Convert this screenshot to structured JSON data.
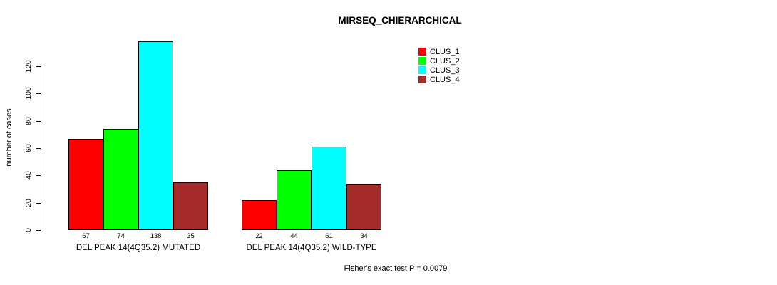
{
  "chart_data": {
    "type": "bar",
    "title": "MIRSEQ_CHIERARCHICAL",
    "xlabel": "",
    "ylabel": "number of cases",
    "ylim": [
      0,
      138
    ],
    "yticks": [
      0,
      20,
      40,
      60,
      80,
      100,
      120
    ],
    "grid": false,
    "legend_position": "top-right",
    "categories": [
      "DEL PEAK 14(4Q35.2) MUTATED",
      "DEL PEAK 14(4Q35.2) WILD-TYPE"
    ],
    "series": [
      {
        "name": "CLUS_1",
        "color": "#FF0000",
        "values": [
          67,
          22
        ]
      },
      {
        "name": "CLUS_2",
        "color": "#00FF00",
        "values": [
          74,
          44
        ]
      },
      {
        "name": "CLUS_3",
        "color": "#00FFFF",
        "values": [
          138,
          61
        ]
      },
      {
        "name": "CLUS_4",
        "color": "#A52A2A",
        "values": [
          35,
          34
        ]
      }
    ],
    "bar_value_labels": [
      [
        67,
        74,
        138,
        35
      ],
      [
        22,
        44,
        61,
        34
      ]
    ],
    "annotation": "Fisher's exact test P = 0.0079"
  }
}
